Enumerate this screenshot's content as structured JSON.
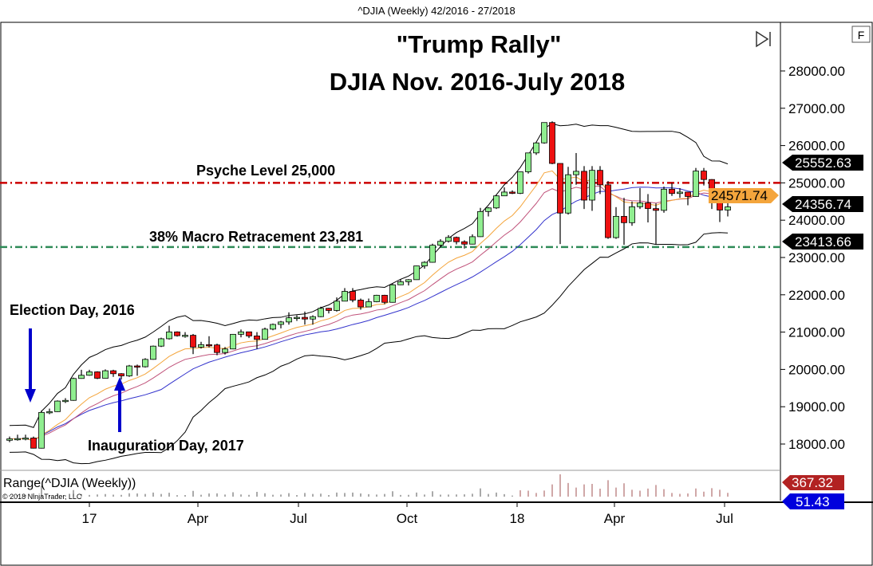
{
  "header": {
    "title": "^DJIA (Weekly)  42/2016 - 27/2018"
  },
  "title": {
    "line1": "\"Trump Rally\"",
    "line2": "DJIA Nov. 2016-July 2018"
  },
  "annotations": {
    "psyche": "Psyche Level 25,000",
    "retracement": "38% Macro Retracement 23,281",
    "election": "Election Day, 2016",
    "inauguration": "Inauguration Day, 2017"
  },
  "buttons": {
    "f": "F",
    "scroll_end_icon": "skip-to-end-icon"
  },
  "indicator_panel": {
    "label": "Range(^DJIA (Weekly))",
    "copyright": "© 2018 NinjaTrader, LLC"
  },
  "price_tags": {
    "upper_band": "25552.63",
    "ma_fast": "24571.74",
    "last": "24356.74",
    "lower_band": "23413.66",
    "range_max": "367.32",
    "range_last": "51.43"
  },
  "colors": {
    "up": "#90ee90",
    "down": "#ee1111",
    "psyche": "#cc0000",
    "retracement": "#2e8b57",
    "bands": "#000000",
    "ma_fast": "#f4a53c",
    "ma_mid": "#c0527a",
    "ma_slow": "#3333cc",
    "arrow": "#0000cc"
  },
  "chart_data": {
    "type": "candlestick",
    "title": "\"Trump Rally\" DJIA Nov. 2016-July 2018",
    "y_ticks": [
      "28000.00",
      "27000.00",
      "26000.00",
      "25000.00",
      "24000.00",
      "23000.00",
      "22000.00",
      "21000.00",
      "20000.00",
      "19000.00",
      "18000.00"
    ],
    "x_ticks": [
      {
        "label": "17",
        "bar": 10
      },
      {
        "label": "Apr",
        "bar": 23.6
      },
      {
        "label": "Jul",
        "bar": 36.2
      },
      {
        "label": "Oct",
        "bar": 49.8
      },
      {
        "label": "18",
        "bar": 63.6
      },
      {
        "label": "Apr",
        "bar": 75.8
      },
      {
        "label": "Jul",
        "bar": 89.6
      }
    ],
    "ylim": [
      17500,
      28500
    ],
    "hlines": [
      {
        "value": 25000,
        "label": "Psyche Level 25,000"
      },
      {
        "value": 23281,
        "label": "38% Macro Retracement 23,281"
      }
    ],
    "open": [
      18100,
      18138,
      18145,
      18161,
      17888,
      18847,
      18868,
      19152,
      19170,
      19757,
      19843,
      19934,
      19763,
      19964,
      19885,
      19827,
      20093,
      20071,
      20269,
      20624,
      20822,
      21005,
      20903,
      20915,
      20597,
      20663,
      20656,
      20453,
      20548,
      20941,
      21007,
      20897,
      20805,
      21080,
      21206,
      21272,
      21384,
      21395,
      21350,
      21414,
      21638,
      21580,
      21830,
      22092,
      21858,
      21675,
      21814,
      21988,
      21798,
      22268,
      22350,
      22405,
      22774,
      22871,
      23329,
      23434,
      23539,
      23422,
      23358,
      23558,
      24232,
      24329,
      24652,
      24754,
      24719,
      25296,
      25803,
      26072,
      26617,
      25521,
      24191,
      25219,
      25310,
      24538,
      25336,
      24947,
      23533,
      24103,
      23933,
      24360,
      24463,
      24311,
      24263,
      24831,
      24715,
      24753,
      24635,
      25317,
      25090,
      24581,
      24271
    ],
    "high": [
      18200,
      18250,
      18250,
      18200,
      18900,
      18950,
      19170,
      19230,
      19780,
      19990,
      19990,
      19950,
      20000,
      19990,
      19900,
      20120,
      20130,
      20300,
      20640,
      20850,
      21170,
      21020,
      21000,
      20950,
      20740,
      20890,
      20690,
      20600,
      20950,
      21070,
      21010,
      21000,
      21120,
      21230,
      21300,
      21530,
      21450,
      21550,
      21450,
      21680,
      21650,
      21930,
      22180,
      22180,
      21900,
      21900,
      22000,
      22000,
      22300,
      22420,
      22420,
      22780,
      22900,
      23370,
      23490,
      23600,
      23560,
      23460,
      23620,
      24330,
      24350,
      24680,
      24880,
      24800,
      25300,
      25810,
      26100,
      26620,
      26650,
      25520,
      25430,
      25800,
      25450,
      25450,
      25450,
      25050,
      24350,
      24600,
      24500,
      24860,
      24700,
      24450,
      24900,
      25000,
      24860,
      24700,
      25400,
      25400,
      25100,
      24600,
      24460
    ],
    "low": [
      18050,
      18090,
      18100,
      17880,
      17880,
      18800,
      18860,
      19100,
      19160,
      19750,
      19830,
      19740,
      19760,
      19800,
      19730,
      19800,
      19830,
      20050,
      20260,
      20600,
      20800,
      20880,
      20850,
      20410,
      20560,
      20590,
      20380,
      20400,
      20540,
      20860,
      20840,
      20550,
      20800,
      21050,
      21100,
      21200,
      21300,
      21200,
      21200,
      21400,
      21500,
      21550,
      21830,
      21800,
      21600,
      21670,
      21800,
      21750,
      21790,
      22260,
      22250,
      22400,
      22700,
      22860,
      23300,
      23400,
      23350,
      23240,
      23350,
      23550,
      24100,
      24300,
      24650,
      24700,
      24700,
      25250,
      25750,
      26050,
      25500,
      23360,
      24150,
      24950,
      24300,
      24250,
      24700,
      23500,
      23500,
      23340,
      23850,
      24300,
      23940,
      23350,
      24200,
      24650,
      24600,
      24400,
      24630,
      24930,
      24300,
      23950,
      24100
    ],
    "close": [
      18138,
      18145,
      18161,
      17888,
      18847,
      18868,
      19152,
      19170,
      19757,
      19843,
      19934,
      19763,
      19964,
      19885,
      19827,
      20093,
      20071,
      20269,
      20624,
      20822,
      21005,
      20903,
      20915,
      20597,
      20663,
      20656,
      20453,
      20548,
      20941,
      21007,
      20897,
      20805,
      21080,
      21206,
      21272,
      21384,
      21395,
      21350,
      21414,
      21638,
      21580,
      21830,
      22092,
      21858,
      21675,
      21814,
      21988,
      21798,
      22268,
      22350,
      22405,
      22774,
      22871,
      23329,
      23434,
      23539,
      23422,
      23358,
      23558,
      24232,
      24329,
      24652,
      24754,
      24719,
      25296,
      25803,
      26072,
      26617,
      25521,
      24191,
      25219,
      25310,
      24538,
      25336,
      24947,
      23533,
      24103,
      23933,
      24360,
      24463,
      24311,
      24263,
      24831,
      24715,
      24753,
      24635,
      25317,
      25090,
      24581,
      24271,
      24357
    ]
  }
}
